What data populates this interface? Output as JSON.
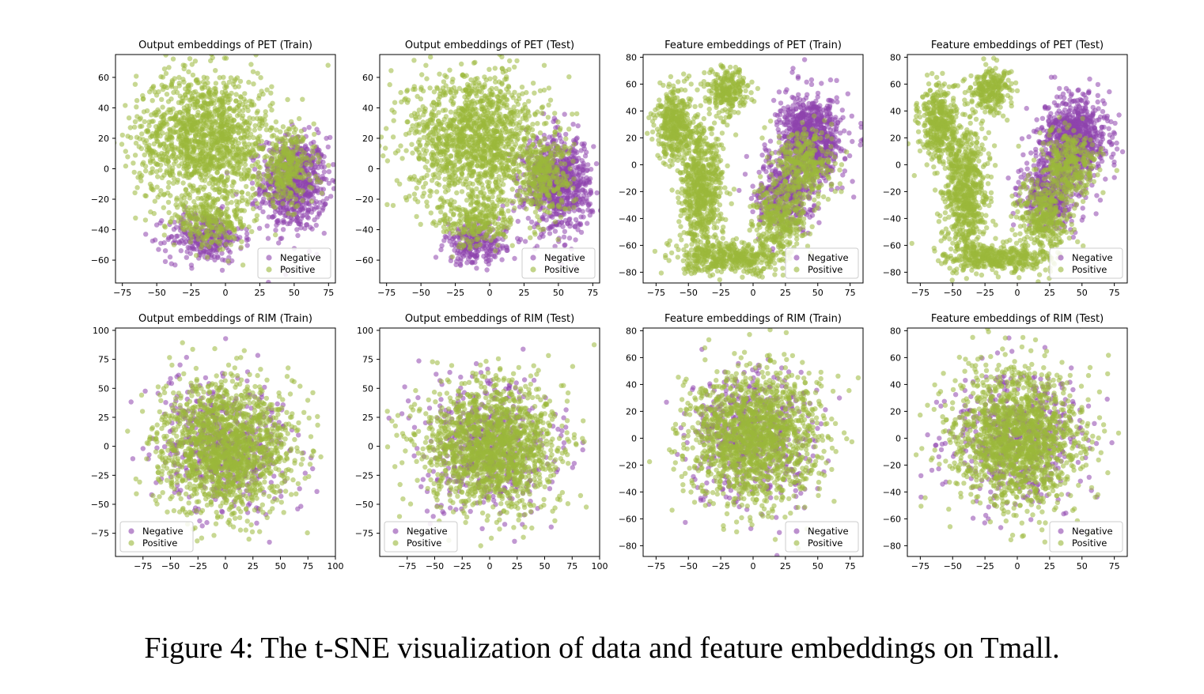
{
  "caption": "Figure 4: The t-SNE visualization of data and feature embeddings on Tmall.",
  "colors": {
    "negative": "#8e44ad",
    "positive": "#9ab83a"
  },
  "chart_data": [
    {
      "type": "scatter",
      "title": "Output embeddings of PET (Train)",
      "xlim": [
        -80,
        80
      ],
      "ylim": [
        -75,
        75
      ],
      "xticks": [
        -75,
        -50,
        -25,
        0,
        25,
        50,
        75
      ],
      "xtick_labels": [
        "−75",
        "−50",
        "−25",
        "0",
        "25",
        "50",
        "75"
      ],
      "yticks": [
        -60,
        -40,
        -20,
        0,
        20,
        40,
        60
      ],
      "ytick_labels": [
        "−60",
        "−40",
        "−20",
        "0",
        "20",
        "40",
        "60"
      ],
      "legend": {
        "placement": "lower-right",
        "entries": [
          "Negative",
          "Positive"
        ]
      },
      "series": [
        {
          "name": "Negative",
          "color": "#8e44ad",
          "clusters": [
            [
              50,
              -10,
              22,
              28,
              700
            ],
            [
              -15,
              -45,
              25,
              15,
              300
            ]
          ]
        },
        {
          "name": "Positive",
          "color": "#9ab83a",
          "clusters": [
            [
              -15,
              20,
              45,
              40,
              1400
            ],
            [
              45,
              0,
              18,
              22,
              300
            ],
            [
              -10,
              -35,
              25,
              15,
              250
            ]
          ]
        }
      ]
    },
    {
      "type": "scatter",
      "title": "Output embeddings of PET (Test)",
      "xlim": [
        -80,
        80
      ],
      "ylim": [
        -75,
        75
      ],
      "xticks": [
        -75,
        -50,
        -25,
        0,
        25,
        50,
        75
      ],
      "xtick_labels": [
        "−75",
        "−50",
        "−25",
        "0",
        "25",
        "50",
        "75"
      ],
      "yticks": [
        -60,
        -40,
        -20,
        0,
        20,
        40,
        60
      ],
      "ytick_labels": [
        "−60",
        "−40",
        "−20",
        "0",
        "20",
        "40",
        "60"
      ],
      "legend": {
        "placement": "lower-right",
        "entries": [
          "Negative",
          "Positive"
        ]
      },
      "series": [
        {
          "name": "Negative",
          "color": "#8e44ad",
          "clusters": [
            [
              50,
              -10,
              22,
              28,
              750
            ],
            [
              -10,
              -50,
              20,
              12,
              250
            ]
          ]
        },
        {
          "name": "Positive",
          "color": "#9ab83a",
          "clusters": [
            [
              -10,
              20,
              45,
              40,
              1400
            ],
            [
              40,
              -5,
              18,
              22,
              300
            ],
            [
              -10,
              -35,
              25,
              15,
              250
            ]
          ]
        }
      ]
    },
    {
      "type": "scatter",
      "title": "Feature embeddings of PET (Train)",
      "xlim": [
        -85,
        85
      ],
      "ylim": [
        -88,
        82
      ],
      "xticks": [
        -75,
        -50,
        -25,
        0,
        25,
        50,
        75
      ],
      "xtick_labels": [
        "−75",
        "−50",
        "−25",
        "0",
        "25",
        "50",
        "75"
      ],
      "yticks": [
        -80,
        -60,
        -40,
        -20,
        0,
        20,
        40,
        60,
        80
      ],
      "ytick_labels": [
        "−80",
        "−60",
        "−40",
        "−20",
        "0",
        "20",
        "40",
        "60",
        "80"
      ],
      "legend": {
        "placement": "lower-right",
        "entries": [
          "Negative",
          "Positive"
        ]
      },
      "series": [
        {
          "name": "Negative",
          "color": "#8e44ad",
          "clusters": [
            [
              45,
              20,
              22,
              28,
              800
            ],
            [
              25,
              -20,
              20,
              25,
              400
            ]
          ]
        },
        {
          "name": "Positive",
          "color": "#9ab83a",
          "clusters": [
            [
              -60,
              30,
              14,
              25,
              400
            ],
            [
              -40,
              -20,
              15,
              45,
              700
            ],
            [
              -15,
              -70,
              35,
              10,
              400
            ],
            [
              20,
              -40,
              18,
              25,
              350
            ],
            [
              -20,
              55,
              15,
              15,
              250
            ],
            [
              40,
              0,
              20,
              25,
              350
            ]
          ]
        }
      ]
    },
    {
      "type": "scatter",
      "title": "Feature embeddings of PET (Test)",
      "xlim": [
        -85,
        85
      ],
      "ylim": [
        -88,
        82
      ],
      "xticks": [
        -75,
        -50,
        -25,
        0,
        25,
        50,
        75
      ],
      "xtick_labels": [
        "−75",
        "−50",
        "−25",
        "0",
        "25",
        "50",
        "75"
      ],
      "yticks": [
        -80,
        -60,
        -40,
        -20,
        0,
        20,
        40,
        60,
        80
      ],
      "ytick_labels": [
        "−80",
        "−60",
        "−40",
        "−20",
        "0",
        "20",
        "40",
        "60",
        "80"
      ],
      "legend": {
        "placement": "lower-right",
        "entries": [
          "Negative",
          "Positive"
        ]
      },
      "series": [
        {
          "name": "Negative",
          "color": "#8e44ad",
          "clusters": [
            [
              45,
              20,
              22,
              28,
              800
            ],
            [
              25,
              -20,
              20,
              25,
              400
            ]
          ]
        },
        {
          "name": "Positive",
          "color": "#9ab83a",
          "clusters": [
            [
              -60,
              30,
              14,
              25,
              400
            ],
            [
              -40,
              -20,
              15,
              45,
              700
            ],
            [
              -15,
              -70,
              35,
              10,
              400
            ],
            [
              20,
              -40,
              18,
              25,
              350
            ],
            [
              -20,
              55,
              15,
              15,
              250
            ],
            [
              40,
              0,
              20,
              25,
              350
            ]
          ]
        }
      ]
    },
    {
      "type": "scatter",
      "title": "Output embeddings of RIM (Train)",
      "xlim": [
        -100,
        100
      ],
      "ylim": [
        -95,
        102
      ],
      "xticks": [
        -75,
        -50,
        -25,
        0,
        25,
        50,
        75,
        100
      ],
      "xtick_labels": [
        "−75",
        "−50",
        "−25",
        "0",
        "25",
        "50",
        "75",
        "100"
      ],
      "yticks": [
        -75,
        -50,
        -25,
        0,
        25,
        50,
        75,
        100
      ],
      "ytick_labels": [
        "−75",
        "−50",
        "−25",
        "0",
        "25",
        "50",
        "75",
        "100"
      ],
      "legend": {
        "placement": "lower-left",
        "entries": [
          "Negative",
          "Positive"
        ]
      },
      "series": [
        {
          "name": "Negative",
          "color": "#8e44ad",
          "clusters": [
            [
              0,
              0,
              55,
              50,
              500
            ]
          ]
        },
        {
          "name": "Positive",
          "color": "#9ab83a",
          "clusters": [
            [
              0,
              0,
              55,
              50,
              1600
            ]
          ]
        }
      ]
    },
    {
      "type": "scatter",
      "title": "Output embeddings of RIM (Test)",
      "xlim": [
        -100,
        100
      ],
      "ylim": [
        -95,
        102
      ],
      "xticks": [
        -75,
        -50,
        -25,
        0,
        25,
        50,
        75,
        100
      ],
      "xtick_labels": [
        "−75",
        "−50",
        "−25",
        "0",
        "25",
        "50",
        "75",
        "100"
      ],
      "yticks": [
        -75,
        -50,
        -25,
        0,
        25,
        50,
        75,
        100
      ],
      "ytick_labels": [
        "−75",
        "−50",
        "−25",
        "0",
        "25",
        "50",
        "75",
        "100"
      ],
      "legend": {
        "placement": "lower-left",
        "entries": [
          "Negative",
          "Positive"
        ]
      },
      "series": [
        {
          "name": "Negative",
          "color": "#8e44ad",
          "clusters": [
            [
              0,
              0,
              55,
              50,
              500
            ]
          ]
        },
        {
          "name": "Positive",
          "color": "#9ab83a",
          "clusters": [
            [
              0,
              0,
              55,
              50,
              1600
            ]
          ]
        }
      ]
    },
    {
      "type": "scatter",
      "title": "Feature embeddings of RIM (Train)",
      "xlim": [
        -85,
        85
      ],
      "ylim": [
        -88,
        82
      ],
      "xticks": [
        -75,
        -50,
        -25,
        0,
        25,
        50,
        75
      ],
      "xtick_labels": [
        "−75",
        "−50",
        "−25",
        "0",
        "25",
        "50",
        "75"
      ],
      "yticks": [
        -80,
        -60,
        -40,
        -20,
        0,
        20,
        40,
        60,
        80
      ],
      "ytick_labels": [
        "−80",
        "−60",
        "−40",
        "−20",
        "0",
        "20",
        "40",
        "60",
        "80"
      ],
      "legend": {
        "placement": "lower-right",
        "entries": [
          "Negative",
          "Positive"
        ]
      },
      "series": [
        {
          "name": "Negative",
          "color": "#8e44ad",
          "clusters": [
            [
              0,
              0,
              45,
              45,
              500
            ]
          ]
        },
        {
          "name": "Positive",
          "color": "#9ab83a",
          "clusters": [
            [
              0,
              0,
              45,
              45,
              1600
            ]
          ]
        }
      ]
    },
    {
      "type": "scatter",
      "title": "Feature embeddings of RIM (Test)",
      "xlim": [
        -85,
        85
      ],
      "ylim": [
        -88,
        82
      ],
      "xticks": [
        -75,
        -50,
        -25,
        0,
        25,
        50,
        75
      ],
      "xtick_labels": [
        "−75",
        "−50",
        "−25",
        "0",
        "25",
        "50",
        "75"
      ],
      "yticks": [
        -80,
        -60,
        -40,
        -20,
        0,
        20,
        40,
        60,
        80
      ],
      "ytick_labels": [
        "−80",
        "−60",
        "−40",
        "−20",
        "0",
        "20",
        "40",
        "60",
        "80"
      ],
      "legend": {
        "placement": "lower-right",
        "entries": [
          "Negative",
          "Positive"
        ]
      },
      "series": [
        {
          "name": "Negative",
          "color": "#8e44ad",
          "clusters": [
            [
              0,
              0,
              45,
              45,
              500
            ]
          ]
        },
        {
          "name": "Positive",
          "color": "#9ab83a",
          "clusters": [
            [
              0,
              0,
              45,
              45,
              1600
            ]
          ]
        }
      ]
    }
  ]
}
